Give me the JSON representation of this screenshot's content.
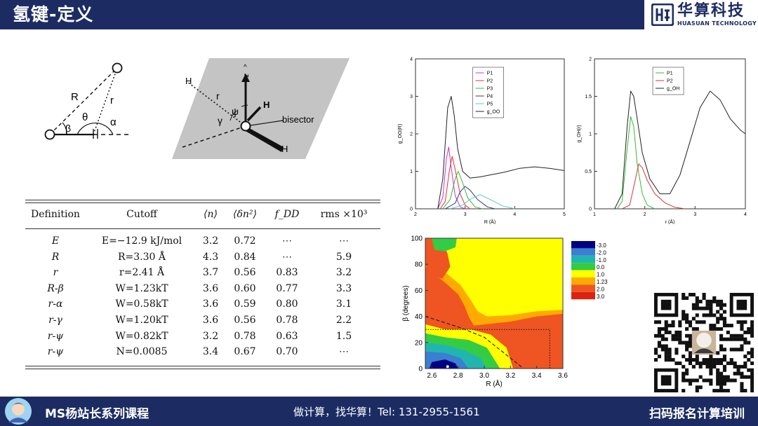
{
  "header": {
    "title": "氢键-定义"
  },
  "brand": {
    "name_cn": "华算科技",
    "name_en": "HUASUAN TECHNOLOGY"
  },
  "footer": {
    "left": "MS杨站长系列课程",
    "middle": "做计算，找华算！Tel: 131-2955-1561",
    "right": "扫码报名计算培训"
  },
  "geometry_fig": {
    "R": "R",
    "r": "r",
    "beta": "β",
    "theta": "θ",
    "alpha": "α"
  },
  "water_fig": {
    "H1": "H",
    "H2": "H",
    "H3": "H",
    "r": "r",
    "psi": "ψ",
    "gamma": "γ",
    "z": "z",
    "hat": "^",
    "bisector": "bisector"
  },
  "table": {
    "headers": [
      "Definition",
      "Cutoff",
      "⟨n⟩",
      "⟨δn²⟩",
      "f_DD",
      "rms ×10³"
    ],
    "rows": [
      {
        "def": "E",
        "cutoff": "E=−12.9 kJ/mol",
        "n": "3.2",
        "dn2": "0.72",
        "fdd": "⋯",
        "rms": null
      },
      {
        "def": "R",
        "cutoff": "R=3.30 Å",
        "n": "4.3",
        "dn2": "0.84",
        "fdd": "⋯",
        "rms": "5.9"
      },
      {
        "def": "r",
        "cutoff": "r=2.41 Å",
        "n": "3.7",
        "dn2": "0.56",
        "fdd": "0.83",
        "rms": "3.2"
      },
      {
        "def": "R-β",
        "cutoff": "W=1.23kT",
        "n": "3.6",
        "dn2": "0.60",
        "fdd": "0.77",
        "rms": "3.3"
      },
      {
        "def": "r-α",
        "cutoff": "W=0.58kT",
        "n": "3.6",
        "dn2": "0.59",
        "fdd": "0.80",
        "rms": "3.1"
      },
      {
        "def": "r-γ",
        "cutoff": "W=1.20kT",
        "n": "3.6",
        "dn2": "0.56",
        "fdd": "0.78",
        "rms": "2.2"
      },
      {
        "def": "r-ψ",
        "cutoff": "W=0.82kT",
        "n": "3.2",
        "dn2": "0.78",
        "fdd": "0.63",
        "rms": "1.5"
      },
      {
        "def": "r-ψ",
        "cutoff": "N=0.0085",
        "n": "3.4",
        "dn2": "0.67",
        "fdd": "0.70",
        "rms": null
      }
    ]
  },
  "chart_data": [
    {
      "type": "line",
      "xlabel": "R (Å)",
      "ylabel": "g_OO(R)",
      "xlim": [
        2,
        5
      ],
      "ylim": [
        0,
        4
      ],
      "xticks": [
        "2",
        "3",
        "4",
        "5"
      ],
      "yticks": [
        "0",
        "1",
        "2",
        "3",
        "4"
      ],
      "legend_position": "top-center",
      "series": [
        {
          "name": "P1",
          "color": "#cc33cc",
          "x": [
            2.45,
            2.55,
            2.62,
            2.67,
            2.72,
            2.8,
            2.9,
            3.0
          ],
          "y": [
            0,
            0.3,
            1.3,
            1.65,
            1.1,
            0.35,
            0.05,
            0
          ]
        },
        {
          "name": "P2",
          "color": "#dd3333",
          "x": [
            2.5,
            2.6,
            2.68,
            2.74,
            2.8,
            2.9,
            3.0,
            3.1
          ],
          "y": [
            0,
            0.2,
            1.0,
            1.4,
            1.05,
            0.4,
            0.1,
            0
          ]
        },
        {
          "name": "P3",
          "color": "#33bb33",
          "x": [
            2.55,
            2.7,
            2.8,
            2.86,
            2.95,
            3.05,
            3.2,
            3.35
          ],
          "y": [
            0,
            0.25,
            0.8,
            1.0,
            0.7,
            0.3,
            0.05,
            0
          ]
        },
        {
          "name": "P4",
          "color": "#333399",
          "x": [
            2.6,
            2.8,
            2.9,
            3.0,
            3.1,
            3.25,
            3.45,
            3.6
          ],
          "y": [
            0,
            0.15,
            0.45,
            0.6,
            0.5,
            0.25,
            0.05,
            0
          ]
        },
        {
          "name": "P5",
          "color": "#55ccbb",
          "x": [
            2.7,
            2.95,
            3.1,
            3.3,
            3.5,
            3.75,
            4.0
          ],
          "y": [
            0,
            0.1,
            0.25,
            0.38,
            0.25,
            0.08,
            0
          ]
        },
        {
          "name": "g_OO",
          "color": "#222222",
          "x": [
            2.45,
            2.55,
            2.65,
            2.72,
            2.78,
            2.85,
            2.95,
            3.1,
            3.3,
            3.5,
            3.8,
            4.1,
            4.4,
            4.7,
            5.0
          ],
          "y": [
            0,
            0.8,
            2.7,
            3.0,
            2.5,
            1.6,
            1.0,
            0.82,
            0.85,
            0.9,
            0.98,
            1.08,
            1.12,
            1.08,
            1.02
          ]
        }
      ]
    },
    {
      "type": "line",
      "xlabel": "r (Å)",
      "ylabel": "g_OH(r)",
      "xlim": [
        1,
        4
      ],
      "ylim": [
        0,
        2
      ],
      "xticks": [
        "1",
        "2",
        "3",
        "4"
      ],
      "yticks": [
        "0",
        "0.5",
        "1",
        "1.5",
        "2"
      ],
      "legend_position": "top-center",
      "series": [
        {
          "name": "P1",
          "color": "#33bb33",
          "x": [
            1.45,
            1.55,
            1.65,
            1.72,
            1.78,
            1.85,
            1.95,
            2.05,
            2.2
          ],
          "y": [
            0,
            0.1,
            0.8,
            1.23,
            1.1,
            0.6,
            0.2,
            0.05,
            0
          ]
        },
        {
          "name": "P2",
          "color": "#dd3333",
          "x": [
            1.55,
            1.7,
            1.8,
            1.88,
            1.95,
            2.05,
            2.2,
            2.4,
            2.6,
            2.8
          ],
          "y": [
            0,
            0.05,
            0.35,
            0.6,
            0.55,
            0.38,
            0.2,
            0.08,
            0.02,
            0
          ]
        },
        {
          "name": "g_OH",
          "color": "#222222",
          "x": [
            1.4,
            1.55,
            1.65,
            1.72,
            1.78,
            1.85,
            1.95,
            2.1,
            2.3,
            2.5,
            2.7,
            2.9,
            3.1,
            3.3,
            3.5,
            3.7,
            3.9,
            4.0
          ],
          "y": [
            0,
            0.2,
            1.1,
            1.57,
            1.5,
            1.2,
            0.75,
            0.4,
            0.2,
            0.2,
            0.45,
            0.9,
            1.35,
            1.57,
            1.45,
            1.2,
            1.05,
            1.0
          ]
        }
      ]
    },
    {
      "type": "heatmap",
      "xlabel": "R (Å)",
      "ylabel": "β (degrees)",
      "xlim": [
        2.55,
        3.6
      ],
      "ylim": [
        0,
        100
      ],
      "xticks": [
        "2.6",
        "2.8",
        "3.0",
        "3.2",
        "3.4",
        "3.6"
      ],
      "yticks": [
        "0",
        "20",
        "40",
        "60",
        "80",
        "100"
      ],
      "colorbar": [
        {
          "label": "-3.0",
          "color": "#000080"
        },
        {
          "label": "-2.0",
          "color": "#3a7fd0"
        },
        {
          "label": "-1.0",
          "color": "#22b5b0"
        },
        {
          "label": "0.0",
          "color": "#33cc44"
        },
        {
          "label": "1.0",
          "color": "#ffff00"
        },
        {
          "label": "1.23",
          "color": "#ffaa00"
        },
        {
          "label": "2.0",
          "color": "#ee5522"
        },
        {
          "label": "3.0",
          "color": "#dd2211"
        }
      ]
    }
  ]
}
